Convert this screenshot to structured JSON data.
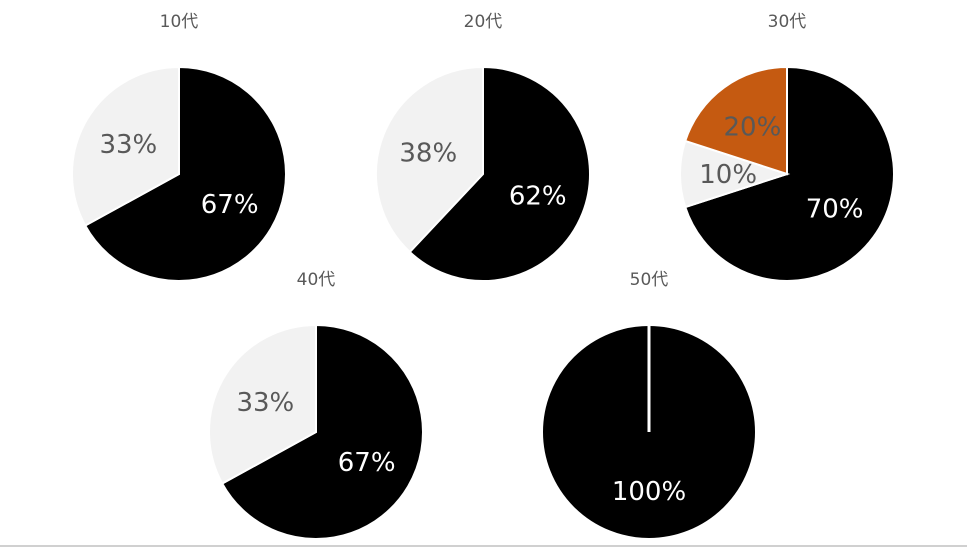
{
  "colors": {
    "black": "#000000",
    "light_gray": "#f2f2f2",
    "orange": "#c55a11",
    "label_on_dark": "#ffffff",
    "label_on_light": "#595959",
    "title": "#595959"
  },
  "chart_data": [
    {
      "type": "pie",
      "title": "10代",
      "slices": [
        {
          "value": 67,
          "label": "67%",
          "color": "#000000",
          "label_color": "#ffffff"
        },
        {
          "value": 33,
          "label": "33%",
          "color": "#f2f2f2",
          "label_color": "#595959"
        }
      ]
    },
    {
      "type": "pie",
      "title": "20代",
      "slices": [
        {
          "value": 62,
          "label": "62%",
          "color": "#000000",
          "label_color": "#ffffff"
        },
        {
          "value": 38,
          "label": "38%",
          "color": "#f2f2f2",
          "label_color": "#595959"
        }
      ]
    },
    {
      "type": "pie",
      "title": "30代",
      "slices": [
        {
          "value": 70,
          "label": "70%",
          "color": "#000000",
          "label_color": "#ffffff"
        },
        {
          "value": 10,
          "label": "10%",
          "color": "#f2f2f2",
          "label_color": "#595959"
        },
        {
          "value": 20,
          "label": "20%",
          "color": "#c55a11",
          "label_color": "#595959"
        }
      ]
    },
    {
      "type": "pie",
      "title": "40代",
      "slices": [
        {
          "value": 67,
          "label": "67%",
          "color": "#000000",
          "label_color": "#ffffff"
        },
        {
          "value": 33,
          "label": "33%",
          "color": "#f2f2f2",
          "label_color": "#595959"
        }
      ]
    },
    {
      "type": "pie",
      "title": "50代",
      "slices": [
        {
          "value": 100,
          "label": "100%",
          "color": "#000000",
          "label_color": "#ffffff"
        }
      ]
    }
  ]
}
